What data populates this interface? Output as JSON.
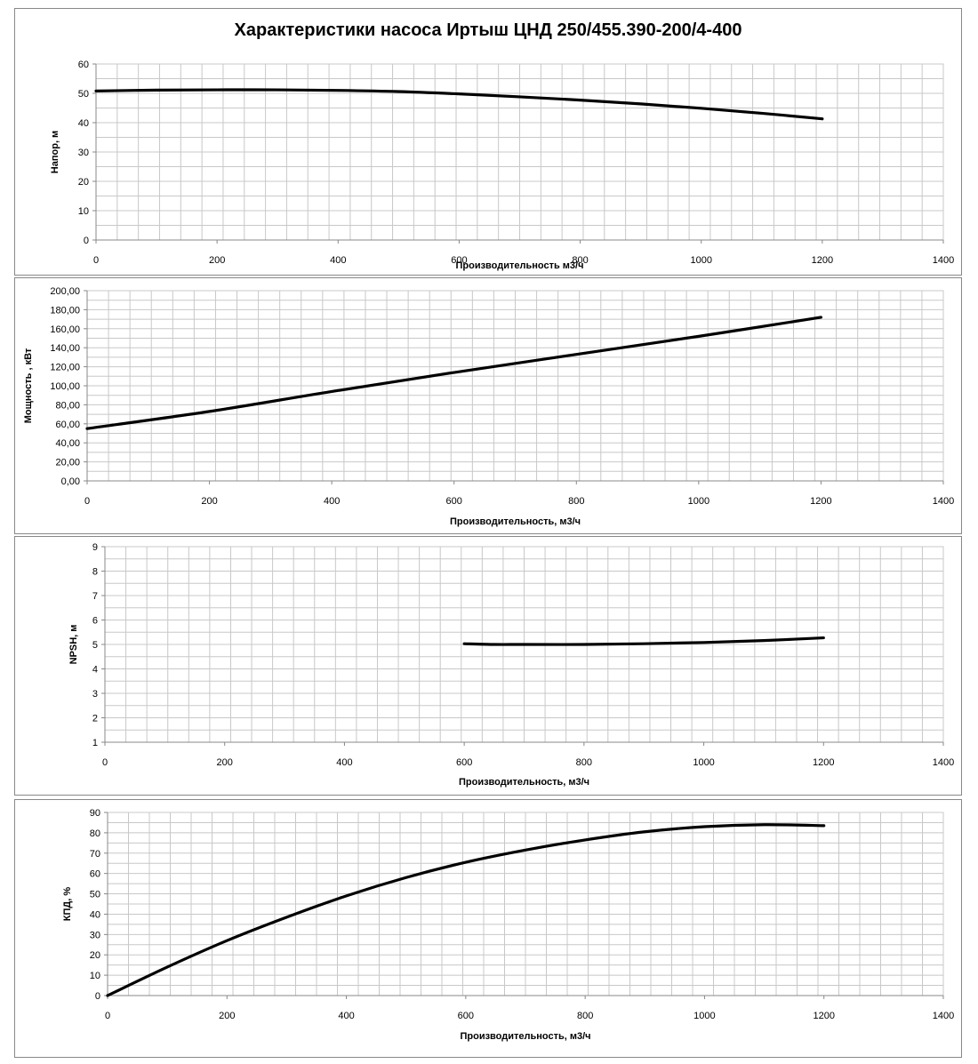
{
  "title": "Характеристики насоса Иртыш ЦНД 250/455.390-200/4-400",
  "chart_data": [
    {
      "type": "line",
      "title": "Характеристики насоса Иртыш ЦНД 250/455.390-200/4-400",
      "xlabel": "Производительность м3/ч",
      "ylabel": "Напор, м",
      "xlim": [
        0,
        1400
      ],
      "ylim": [
        0,
        60
      ],
      "xticks": [
        "0",
        "200",
        "400",
        "600",
        "800",
        "1000",
        "1200",
        "1400"
      ],
      "yticks": [
        "0",
        "10",
        "20",
        "30",
        "40",
        "50",
        "60"
      ],
      "grid": true,
      "series": [
        {
          "x": [
            0,
            100,
            200,
            300,
            400,
            500,
            600,
            700,
            800,
            900,
            1000,
            1100,
            1200
          ],
          "y": [
            50.8,
            51.1,
            51.2,
            51.2,
            51.0,
            50.6,
            49.8,
            48.8,
            47.7,
            46.4,
            44.9,
            43.2,
            41.3
          ]
        }
      ]
    },
    {
      "type": "line",
      "xlabel": "Производительность, м3/ч",
      "ylabel": "Мощность , кВт",
      "xlim": [
        0,
        1400
      ],
      "ylim": [
        0,
        200
      ],
      "xticks": [
        "0",
        "200",
        "400",
        "600",
        "800",
        "1000",
        "1200",
        "1400"
      ],
      "yticks": [
        "0,00",
        "20,00",
        "40,00",
        "60,00",
        "80,00",
        "100,00",
        "120,00",
        "140,00",
        "160,00",
        "180,00",
        "200,00"
      ],
      "grid": true,
      "series": [
        {
          "x": [
            0,
            200,
            400,
            600,
            800,
            1000,
            1200
          ],
          "y": [
            55,
            73,
            94,
            114,
            133,
            152,
            172
          ]
        }
      ]
    },
    {
      "type": "line",
      "xlabel": "Производительность, м3/ч",
      "ylabel": "NPSH, м",
      "xlim": [
        0,
        1400
      ],
      "ylim": [
        1,
        9
      ],
      "xticks": [
        "0",
        "200",
        "400",
        "600",
        "800",
        "1000",
        "1200",
        "1400"
      ],
      "yticks": [
        "1",
        "2",
        "3",
        "4",
        "5",
        "6",
        "7",
        "8",
        "9"
      ],
      "grid": true,
      "series": [
        {
          "x": [
            600,
            650,
            700,
            800,
            900,
            1000,
            1100,
            1200
          ],
          "y": [
            5.03,
            5.0,
            5.0,
            5.0,
            5.03,
            5.08,
            5.16,
            5.27
          ]
        }
      ]
    },
    {
      "type": "line",
      "xlabel": "Производительность, м3/ч",
      "ylabel": "КПД, %",
      "xlim": [
        0,
        1400
      ],
      "ylim": [
        0,
        90
      ],
      "xticks": [
        "0",
        "200",
        "400",
        "600",
        "800",
        "1000",
        "1200",
        "1400"
      ],
      "yticks": [
        "0",
        "10",
        "20",
        "30",
        "40",
        "50",
        "60",
        "70",
        "80",
        "90"
      ],
      "grid": true,
      "series": [
        {
          "x": [
            0,
            100,
            200,
            300,
            400,
            500,
            600,
            700,
            800,
            900,
            1000,
            1100,
            1200
          ],
          "y": [
            0,
            14,
            27,
            38.5,
            49,
            58,
            65.5,
            71.5,
            76.5,
            80.5,
            83,
            84,
            83.5
          ]
        }
      ]
    }
  ]
}
